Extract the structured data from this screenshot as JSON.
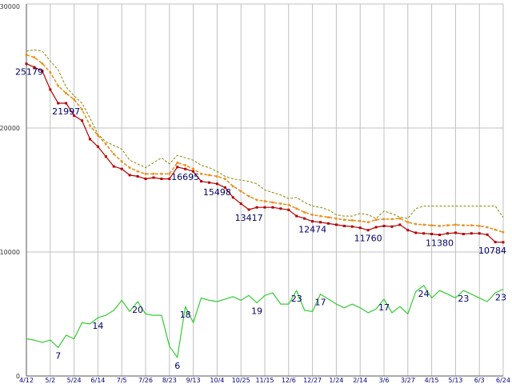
{
  "chart_data": {
    "type": "line",
    "title": "",
    "xlabel": "",
    "ylabel": "",
    "grid": true,
    "legend": "none",
    "ylim": [
      0,
      30000
    ],
    "yticks": [
      "0",
      "10000",
      "20000",
      "30000"
    ],
    "xticks": [
      "4/12",
      "5/2",
      "5/24",
      "6/14",
      "7/5",
      "7/26",
      "8/23",
      "9/13",
      "10/4",
      "10/25",
      "11/15",
      "12/6",
      "12/27",
      "1/24",
      "2/14",
      "3/6",
      "3/27",
      "4/15",
      "5/13",
      "6/3",
      "6/24"
    ],
    "colors": {
      "main": "#b00000",
      "average": "#e89020",
      "upper": "#888800",
      "rank": "#33cc33",
      "grid": "#c0c0c0",
      "label": "#000066"
    },
    "series": [
      {
        "key": "main",
        "style": "line-markers",
        "values": [
          25179,
          24900,
          24600,
          23100,
          22000,
          21997,
          21000,
          20600,
          19100,
          18500,
          17700,
          16900,
          16700,
          16200,
          16100,
          15900,
          16000,
          15900,
          15900,
          16850,
          16695,
          16500,
          15700,
          15600,
          15498,
          15200,
          14400,
          13900,
          13417,
          13600,
          13600,
          13600,
          13500,
          13400,
          12900,
          12700,
          12474,
          12400,
          12300,
          12200,
          12100,
          12050,
          11950,
          11760,
          12000,
          12100,
          12050,
          12200,
          11760,
          11550,
          11500,
          11450,
          11380,
          11500,
          11550,
          11450,
          11500,
          11500,
          11400,
          10800,
          10784
        ]
      },
      {
        "key": "average",
        "style": "dashed-markers",
        "values": [
          25900,
          25700,
          25200,
          24500,
          23400,
          22800,
          22300,
          21500,
          20200,
          19400,
          18700,
          17900,
          17300,
          16800,
          16500,
          16300,
          16300,
          16300,
          16300,
          17200,
          17000,
          16700,
          16300,
          16200,
          16100,
          15900,
          15300,
          14900,
          14500,
          14200,
          14100,
          14000,
          13900,
          13800,
          13500,
          13200,
          13000,
          12900,
          12800,
          12700,
          12600,
          12550,
          12500,
          12400,
          12600,
          12650,
          12650,
          12700,
          12400,
          12250,
          12200,
          12150,
          12100,
          12150,
          12200,
          12150,
          12150,
          12100,
          12000,
          11800,
          11600
        ]
      },
      {
        "key": "upper",
        "style": "dashed-thin",
        "values": [
          26200,
          26300,
          26200,
          25400,
          24700,
          23300,
          22600,
          22000,
          20800,
          19500,
          18900,
          18600,
          18300,
          17400,
          17100,
          16800,
          17200,
          17600,
          17100,
          17800,
          17600,
          17400,
          17000,
          16800,
          16500,
          16100,
          15900,
          15800,
          15700,
          15500,
          15000,
          14800,
          14600,
          14300,
          14400,
          14000,
          13700,
          13600,
          13400,
          13000,
          12900,
          12900,
          13100,
          13000,
          12700,
          13300,
          13100,
          12800,
          12700,
          13500,
          13700,
          13700,
          13700,
          13700,
          13700,
          13700,
          13700,
          13700,
          13700,
          13700,
          12800
        ]
      },
      {
        "key": "rank",
        "style": "line",
        "values": [
          3000,
          2900,
          2700,
          2900,
          2300,
          3300,
          3000,
          4300,
          4200,
          4700,
          4900,
          5300,
          6100,
          5200,
          6000,
          5000,
          4900,
          4900,
          2400,
          1500,
          5600,
          4300,
          6300,
          6100,
          6000,
          6200,
          6400,
          6100,
          6500,
          5900,
          6500,
          6700,
          5800,
          5800,
          6900,
          5300,
          5200,
          6600,
          6200,
          5800,
          5500,
          5800,
          5500,
          5100,
          5400,
          6200,
          5100,
          5600,
          5000,
          6800,
          7300,
          6300,
          6900,
          6600,
          6300,
          6900,
          6600,
          6300,
          6000,
          6700,
          7000
        ]
      }
    ],
    "value_labels": [
      {
        "series": "main",
        "index": 0,
        "text": "25179",
        "pos": "below"
      },
      {
        "series": "main",
        "index": 5,
        "text": "21997",
        "pos": "below"
      },
      {
        "series": "main",
        "index": 20,
        "text": "16695",
        "pos": "below"
      },
      {
        "series": "main",
        "index": 24,
        "text": "15498",
        "pos": "below"
      },
      {
        "series": "main",
        "index": 28,
        "text": "13417",
        "pos": "below"
      },
      {
        "series": "main",
        "index": 36,
        "text": "12474",
        "pos": "below"
      },
      {
        "series": "main",
        "index": 43,
        "text": "11760",
        "pos": "below"
      },
      {
        "series": "main",
        "index": 52,
        "text": "11380",
        "pos": "below"
      },
      {
        "series": "main",
        "index": 60,
        "text": "10784",
        "pos": "below"
      }
    ],
    "rank_labels": [
      {
        "index": 4,
        "text": "7",
        "pos": "below"
      },
      {
        "index": 9,
        "text": "14",
        "pos": "below"
      },
      {
        "index": 14,
        "text": "20",
        "pos": "below"
      },
      {
        "index": 19,
        "text": "6",
        "pos": "below"
      },
      {
        "index": 20,
        "text": "18",
        "pos": "below"
      },
      {
        "index": 29,
        "text": "19",
        "pos": "below"
      },
      {
        "index": 34,
        "text": "23",
        "pos": "below"
      },
      {
        "index": 37,
        "text": "17",
        "pos": "below"
      },
      {
        "index": 45,
        "text": "17",
        "pos": "below"
      },
      {
        "index": 50,
        "text": "24",
        "pos": "below"
      },
      {
        "index": 55,
        "text": "23",
        "pos": "below"
      },
      {
        "index": 60,
        "text": "23",
        "pos": "below"
      }
    ]
  }
}
